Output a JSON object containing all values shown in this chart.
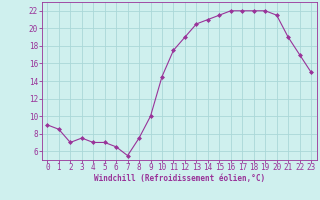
{
  "x": [
    0,
    1,
    2,
    3,
    4,
    5,
    6,
    7,
    8,
    9,
    10,
    11,
    12,
    13,
    14,
    15,
    16,
    17,
    18,
    19,
    20,
    21,
    22,
    23
  ],
  "y": [
    9,
    8.5,
    7,
    7.5,
    7,
    7,
    6.5,
    5.5,
    7.5,
    10,
    14.5,
    17.5,
    19,
    20.5,
    21,
    21.5,
    22,
    22,
    22,
    22,
    21.5,
    19,
    17,
    15
  ],
  "line_color": "#993399",
  "marker": "D",
  "marker_size": 2.0,
  "bg_color": "#cff0ee",
  "grid_color": "#aad8d8",
  "xlabel": "Windchill (Refroidissement éolien,°C)",
  "xlabel_color": "#993399",
  "tick_color": "#993399",
  "xlim": [
    -0.5,
    23.5
  ],
  "ylim": [
    5.0,
    23.0
  ],
  "yticks": [
    6,
    8,
    10,
    12,
    14,
    16,
    18,
    20,
    22
  ],
  "xticks": [
    0,
    1,
    2,
    3,
    4,
    5,
    6,
    7,
    8,
    9,
    10,
    11,
    12,
    13,
    14,
    15,
    16,
    17,
    18,
    19,
    20,
    21,
    22,
    23
  ],
  "axis_fontsize": 5.5,
  "tick_fontsize": 5.5
}
